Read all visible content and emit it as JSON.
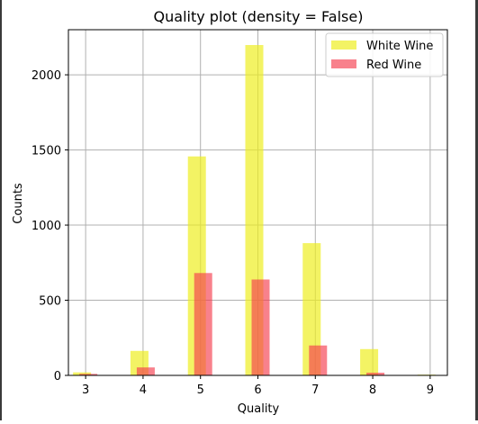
{
  "chart_data": {
    "type": "bar",
    "title": "Quality plot (density = False)",
    "xlabel": "Quality",
    "ylabel": "Counts",
    "xlim": [
      2.7,
      9.3
    ],
    "ylim": [
      0,
      2300
    ],
    "xticks": [
      3,
      4,
      5,
      6,
      7,
      8,
      9
    ],
    "yticks": [
      0,
      500,
      1000,
      1500,
      2000
    ],
    "grid": true,
    "legend_position": "top-right",
    "series": [
      {
        "name": "White Wine",
        "color": "#eeee22",
        "alpha": 0.7,
        "x": [
          3,
          4,
          5,
          6,
          7,
          8,
          9
        ],
        "values": [
          20,
          163,
          1457,
          2198,
          880,
          175,
          5
        ]
      },
      {
        "name": "Red Wine",
        "color": "#f53d4f",
        "alpha": 0.65,
        "x": [
          3,
          4,
          5,
          6,
          7,
          8
        ],
        "values": [
          10,
          53,
          681,
          638,
          199,
          18
        ]
      }
    ]
  }
}
